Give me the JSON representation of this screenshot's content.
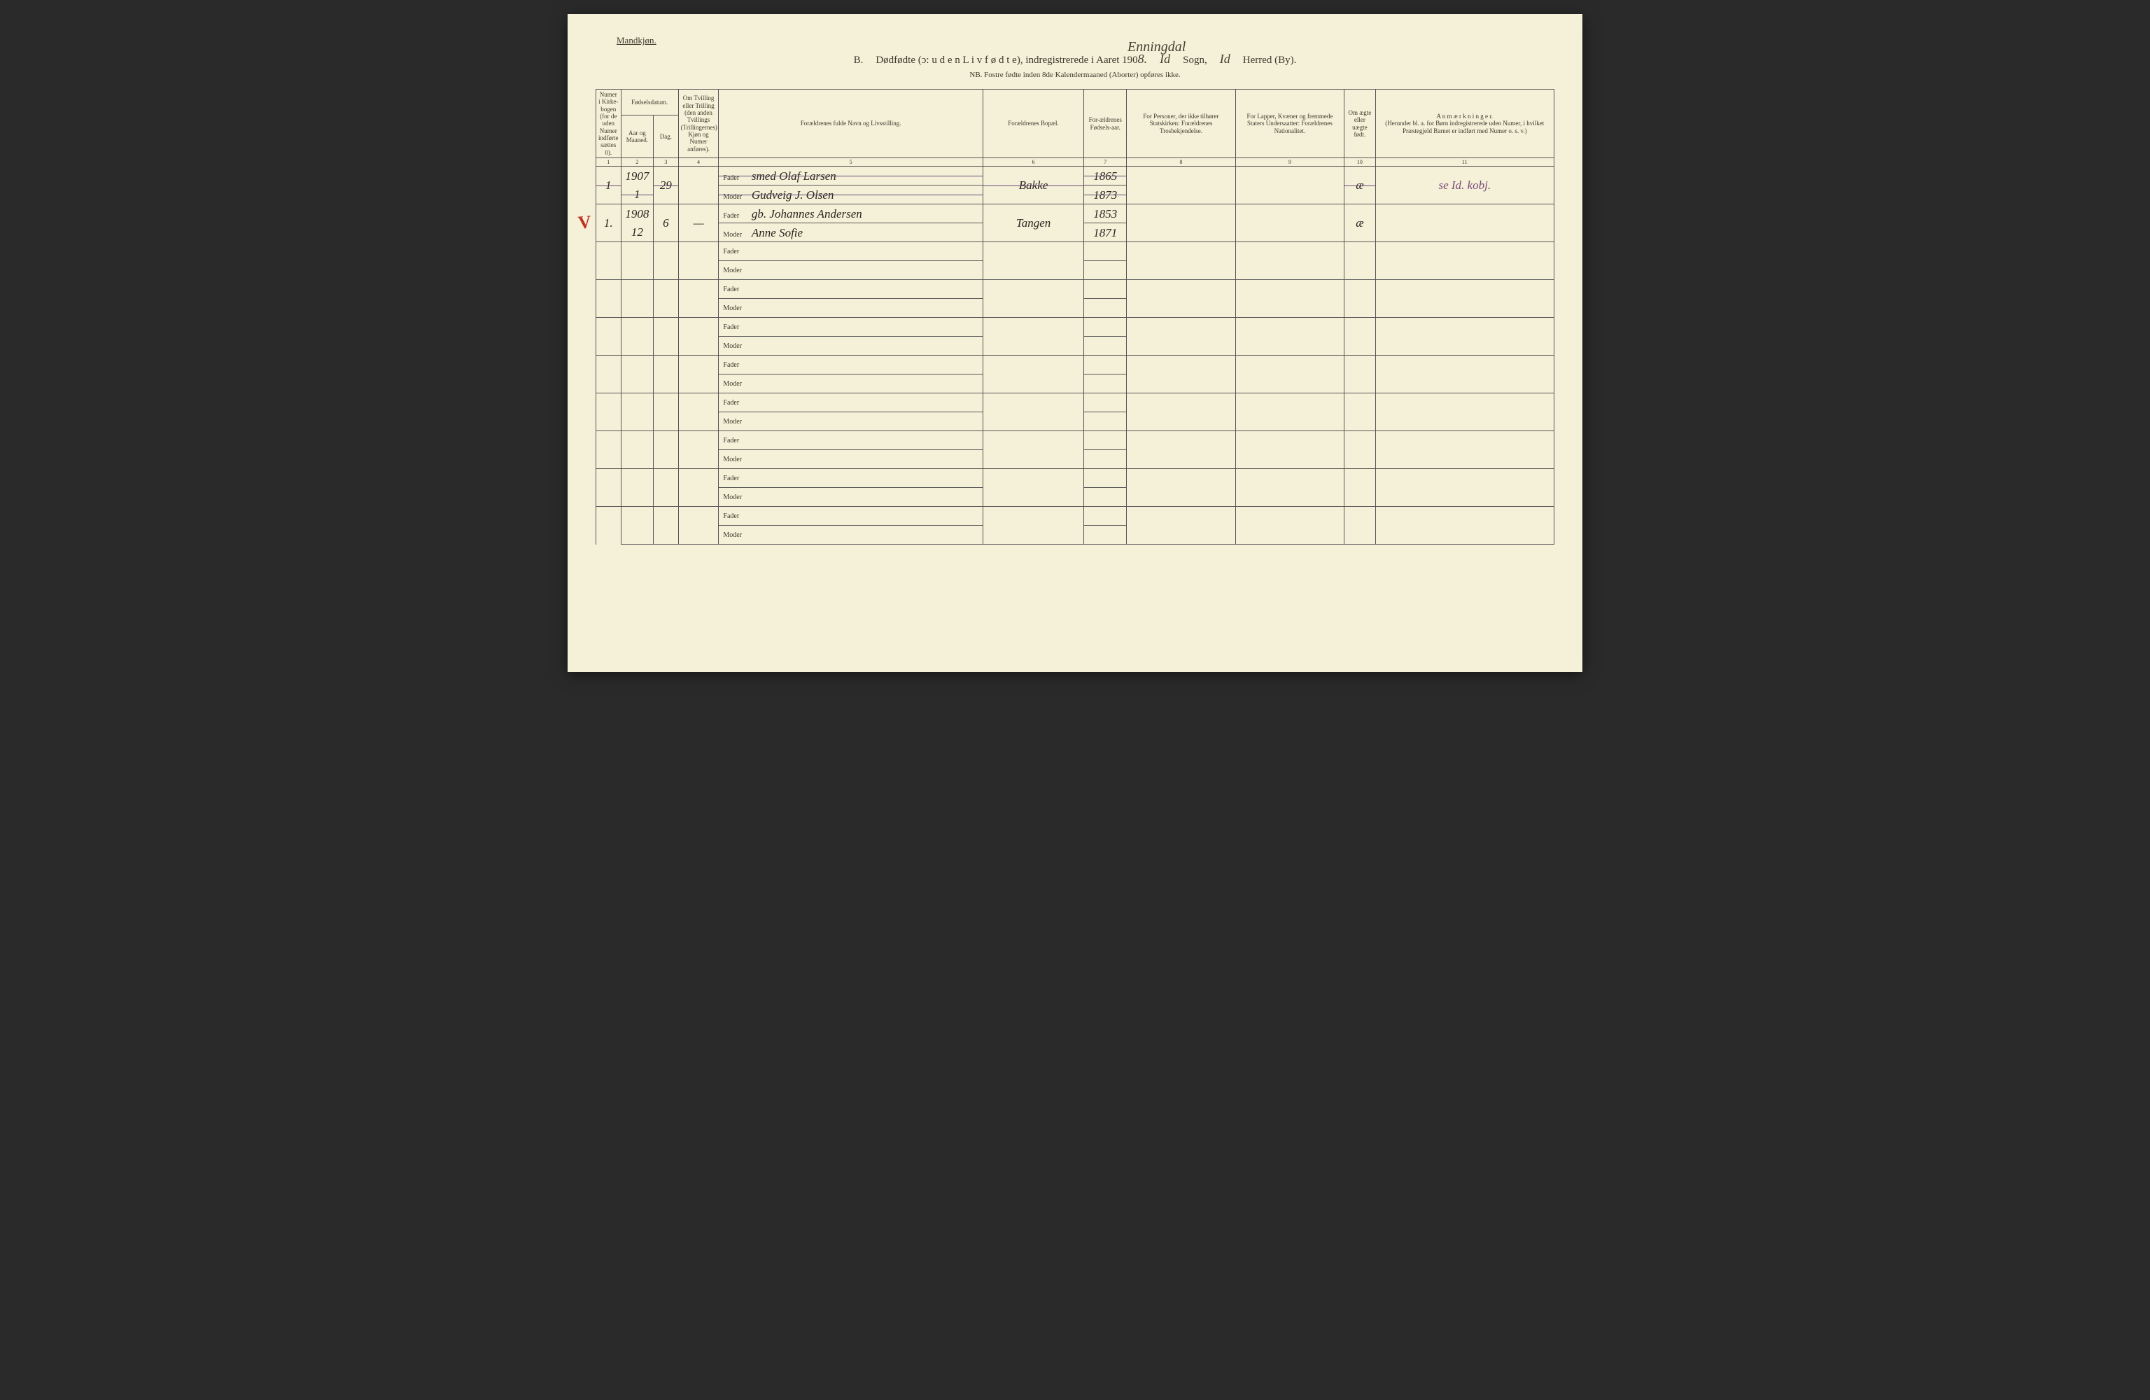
{
  "gender_label": "Mandkjøn.",
  "title": {
    "prefix": "B.",
    "main": "Dødfødte (ɔ: u d e n  L i v  f ø d t e), indregistrerede i Aaret 190",
    "year_suffix": "8.",
    "sogn_script": "Enningdal",
    "sogn_script2": "Id",
    "sogn_label": "Sogn,",
    "herred_script": "Id",
    "herred_label": "Herred (By)."
  },
  "subtitle": "NB.  Fostre fødte inden 8de Kalendermaaned (Aborter) opføres ikke.",
  "headers": {
    "col1": "Numer i Kirke-bogen (for de uden Numer indførte sættes 0).",
    "col2_top": "Fødselsdatum.",
    "col2a": "Aar og Maaned.",
    "col2b": "Dag.",
    "col4": "Om Tvilling eller Trilling (den anden Tvillings (Trillingernes) Kjøn og Numer anføres).",
    "col5": "Forældrenes fulde Navn og Livsstilling.",
    "col6": "Forældrenes Bopæl.",
    "col7": "For-ældrenes Fødsels-aar.",
    "col8": "For Personer, der ikke tilhører Statskirken: Forældrenes Trosbekjendelse.",
    "col9": "For Lapper, Kvæner og fremmede Staters Undersaatter: Forældrenes Nationalitet.",
    "col10": "Om ægte eller uægte født.",
    "col11": "A n m æ r k n i n g e r.\n(Herunder bl. a. for Børn indregistrerede uden Numer, i hvilket Præstegjeld Barnet er indført med Numer o. s. v.)"
  },
  "colnums": [
    "1",
    "2",
    "3",
    "4",
    "5",
    "6",
    "7",
    "8",
    "9",
    "10",
    "11"
  ],
  "labels": {
    "father": "Fader",
    "mother": "Moder"
  },
  "rows": [
    {
      "struck": true,
      "year": "1907",
      "num": "1",
      "month": "1",
      "day": "29",
      "father": "smed Olaf Larsen",
      "mother": "Gudveig J. Olsen",
      "bopael": "Bakke",
      "fodaar_f": "1865",
      "fodaar_m": "1873",
      "aegte": "æ",
      "anm": "se Id. kobj."
    },
    {
      "struck": false,
      "year": "1908",
      "num": "1.",
      "month": "12",
      "day": "6",
      "twin": "—",
      "father": "gb. Johannes Andersen",
      "mother": "Anne Sofie",
      "bopael": "Tangen",
      "fodaar_f": "1853",
      "fodaar_m": "1871",
      "aegte": "æ",
      "anm": ""
    }
  ],
  "checkmark": "V",
  "colors": {
    "paper": "#f5f0d8",
    "ink": "#3a3a2a",
    "border": "#555555",
    "purple": "#7a4a7a",
    "red": "#c03020",
    "hand": "#2a2520"
  }
}
